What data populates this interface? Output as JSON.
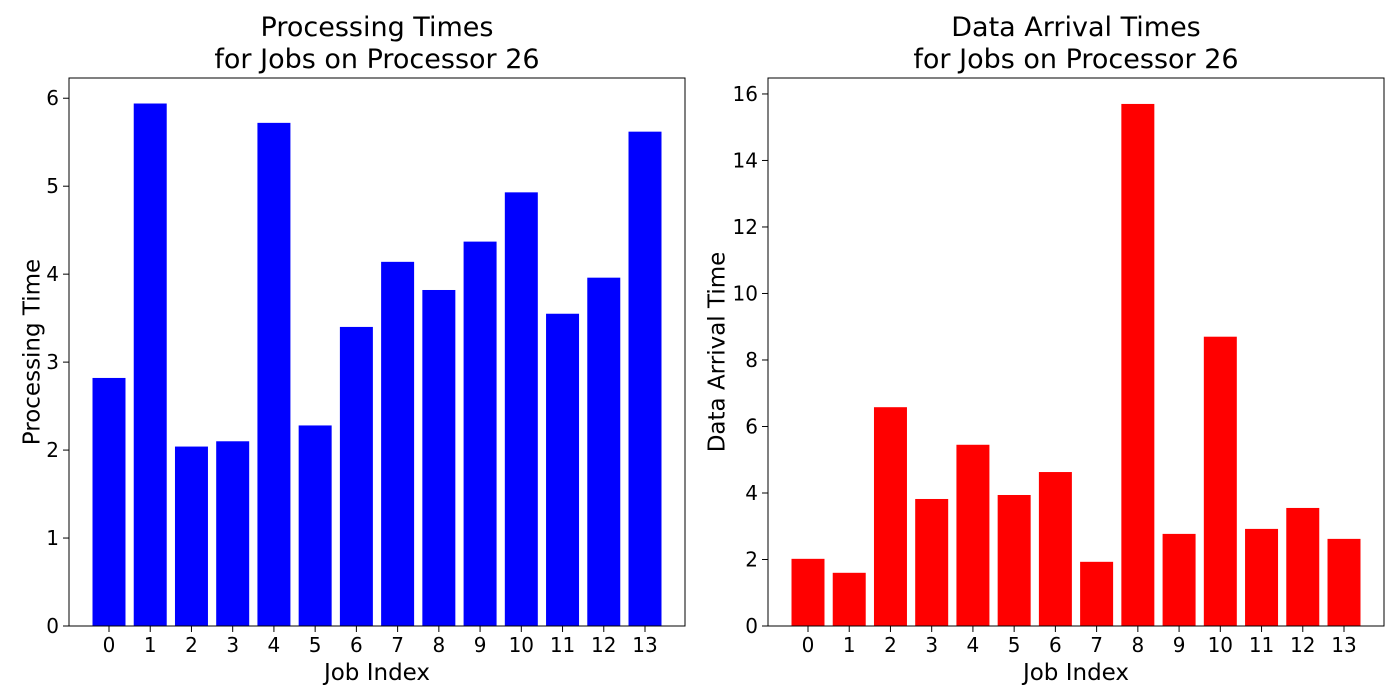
{
  "chart_data": [
    {
      "type": "bar",
      "title": [
        "Processing Times",
        "for Jobs on Processor 26"
      ],
      "xlabel": "Job Index",
      "ylabel": "Processing Time",
      "categories": [
        "0",
        "1",
        "2",
        "3",
        "4",
        "5",
        "6",
        "7",
        "8",
        "9",
        "10",
        "11",
        "12",
        "13"
      ],
      "values": [
        2.82,
        5.94,
        2.04,
        2.1,
        5.72,
        2.28,
        3.4,
        4.14,
        3.82,
        4.37,
        4.93,
        3.55,
        3.96,
        5.62
      ],
      "yticks": [
        0,
        1,
        2,
        3,
        4,
        5,
        6
      ],
      "ylim": [
        0,
        6.23
      ],
      "color": "#0000ff",
      "grid": false,
      "legend": false
    },
    {
      "type": "bar",
      "title": [
        "Data Arrival Times",
        "for Jobs on Processor 26"
      ],
      "xlabel": "Job Index",
      "ylabel": "Data Arrival Time",
      "categories": [
        "0",
        "1",
        "2",
        "3",
        "4",
        "5",
        "6",
        "7",
        "8",
        "9",
        "10",
        "11",
        "12",
        "13"
      ],
      "values": [
        2.02,
        1.6,
        6.58,
        3.82,
        5.45,
        3.94,
        4.63,
        1.93,
        15.7,
        2.77,
        8.7,
        2.92,
        3.55,
        2.62
      ],
      "yticks": [
        0,
        2,
        4,
        6,
        8,
        10,
        12,
        14,
        16
      ],
      "ylim": [
        0,
        16.48
      ],
      "color": "#ff0000",
      "grid": false,
      "legend": false
    }
  ]
}
